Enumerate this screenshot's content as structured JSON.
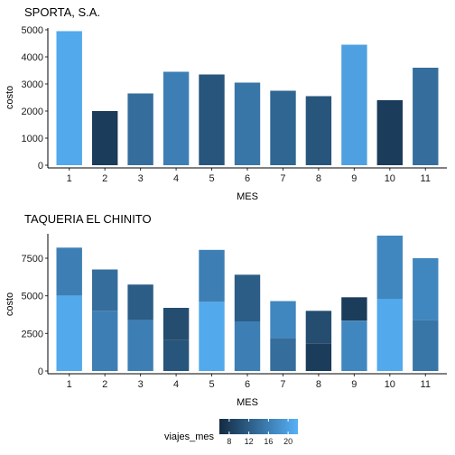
{
  "chart_data": [
    {
      "type": "bar",
      "title": "SPORTA, S.A.",
      "xlabel": "MES",
      "ylabel": "costo",
      "categories": [
        "1",
        "2",
        "3",
        "4",
        "5",
        "6",
        "7",
        "8",
        "9",
        "10",
        "11"
      ],
      "ylim": [
        0,
        5000
      ],
      "yticks": [
        0,
        1000,
        2000,
        3000,
        4000,
        5000
      ],
      "segments": [
        [
          {
            "value": 4950,
            "viajes_mes": 21
          }
        ],
        [
          {
            "value": 2000,
            "viajes_mes": 8
          }
        ],
        [
          {
            "value": 2650,
            "viajes_mes": 14
          }
        ],
        [
          {
            "value": 3450,
            "viajes_mes": 16
          }
        ],
        [
          {
            "value": 3350,
            "viajes_mes": 11
          }
        ],
        [
          {
            "value": 3050,
            "viajes_mes": 15
          }
        ],
        [
          {
            "value": 2750,
            "viajes_mes": 13
          }
        ],
        [
          {
            "value": 2550,
            "viajes_mes": 11
          }
        ],
        [
          {
            "value": 4450,
            "viajes_mes": 20
          }
        ],
        [
          {
            "value": 2400,
            "viajes_mes": 8
          }
        ],
        [
          {
            "value": 3600,
            "viajes_mes": 14
          }
        ]
      ]
    },
    {
      "type": "bar",
      "title": "TAQUERIA EL CHINITO",
      "xlabel": "MES",
      "ylabel": "costo",
      "categories": [
        "1",
        "2",
        "3",
        "4",
        "5",
        "6",
        "7",
        "8",
        "9",
        "10",
        "11"
      ],
      "ylim": [
        0,
        9000
      ],
      "yticks": [
        0,
        2500,
        5000,
        7500
      ],
      "segments": [
        [
          {
            "value": 5000,
            "viajes_mes": 21
          },
          {
            "value": 3200,
            "viajes_mes": 16
          }
        ],
        [
          {
            "value": 4000,
            "viajes_mes": 16
          },
          {
            "value": 2750,
            "viajes_mes": 14
          }
        ],
        [
          {
            "value": 3400,
            "viajes_mes": 16
          },
          {
            "value": 2350,
            "viajes_mes": 12
          }
        ],
        [
          {
            "value": 2050,
            "viajes_mes": 11
          },
          {
            "value": 2150,
            "viajes_mes": 10
          }
        ],
        [
          {
            "value": 4600,
            "viajes_mes": 21
          },
          {
            "value": 3450,
            "viajes_mes": 16
          }
        ],
        [
          {
            "value": 3300,
            "viajes_mes": 16
          },
          {
            "value": 3100,
            "viajes_mes": 12
          }
        ],
        [
          {
            "value": 2200,
            "viajes_mes": 14
          },
          {
            "value": 2450,
            "viajes_mes": 17
          }
        ],
        [
          {
            "value": 1850,
            "viajes_mes": 8
          },
          {
            "value": 2150,
            "viajes_mes": 10
          }
        ],
        [
          {
            "value": 3350,
            "viajes_mes": 17
          },
          {
            "value": 1550,
            "viajes_mes": 8
          }
        ],
        [
          {
            "value": 4800,
            "viajes_mes": 21
          },
          {
            "value": 4200,
            "viajes_mes": 17
          }
        ],
        [
          {
            "value": 3400,
            "viajes_mes": 15
          },
          {
            "value": 4100,
            "viajes_mes": 17
          }
        ]
      ]
    }
  ],
  "legend": {
    "title": "viajes_mes",
    "min": 6,
    "max": 22,
    "ticks": [
      8,
      12,
      16,
      20
    ],
    "color_low": "#132B43",
    "color_high": "#56B1F7",
    "placement": "bottom"
  }
}
